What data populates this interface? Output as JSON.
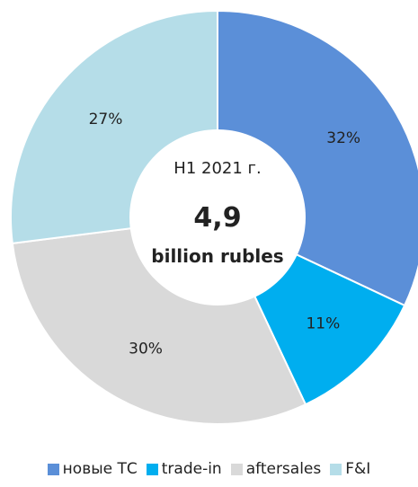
{
  "chart_data": {
    "type": "pie",
    "variant": "donut",
    "categories": [
      "новые ТС",
      "trade-in",
      "aftersales",
      "F&I"
    ],
    "values": [
      32,
      11,
      30,
      27
    ],
    "labels": [
      "32%",
      "11%",
      "30%",
      "27%"
    ],
    "colors": [
      "#5B8FD8",
      "#00AEEF",
      "#D9D9D9",
      "#B5DDE8"
    ],
    "center": {
      "period": "H1 2021 г.",
      "total": "4,9",
      "unit": "billion rubles"
    },
    "legend_position": "bottom"
  }
}
